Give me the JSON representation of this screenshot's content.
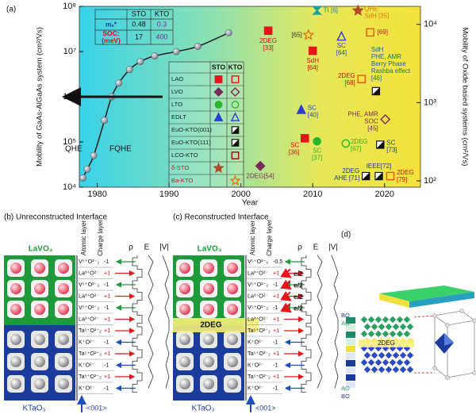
{
  "chart_data": {
    "type": "scatter",
    "panel_label": "(a)",
    "xlabel": "Year",
    "ylabel": "Mobility of GaAs-AlGaAs system (cm²/Vs)",
    "y2label": "Mobility of Oxide based systems (cm²/Vs)",
    "xlim": [
      1977.5,
      2025
    ],
    "xticks": [
      1980,
      1990,
      2000,
      2010,
      2020
    ],
    "ylim": [
      10000,
      100000000
    ],
    "ylog": true,
    "yticks": [
      {
        "value": 10000,
        "label": "10⁴"
      },
      {
        "value": 100000,
        "label": "10⁵"
      },
      {
        "value": 1000000,
        "label": "10⁶"
      },
      {
        "value": 10000000,
        "label": "10⁷"
      },
      {
        "value": 100000000,
        "label": "10⁸"
      }
    ],
    "y2lim": [
      83,
      17000
    ],
    "y2log": true,
    "y2ticks": [
      {
        "value": 100,
        "label": "10²"
      },
      {
        "value": 1000,
        "label": "10³"
      },
      {
        "value": 10000,
        "label": "10⁴"
      }
    ],
    "series": [
      {
        "color": "#8e9aa8",
        "marker": "sphere",
        "x": [
          1978,
          1978.6,
          1979.5,
          1981,
          1982,
          1983,
          1984.5,
          1986,
          1988,
          1991,
          1994,
          1998.3
        ],
        "values": [
          16000,
          25000,
          50000,
          300000,
          1000000,
          2000000,
          4000000,
          6000000,
          8000000,
          10000000,
          13000000,
          26000000
        ]
      },
      {
        "axis": "y2",
        "x": [
          2003.8,
          2009.4,
          2010,
          2010.6,
          2016.3,
          2014,
          2018,
          2016.8,
          2018.8,
          2008.4,
          2020.1,
          2008.9,
          2010.6,
          2014.6,
          2019.4,
          2002.7,
          2019.2,
          2017.4,
          2020.8
        ],
        "values": [
          8300,
          7300,
          4600,
          15000,
          15000,
          7000,
          7900,
          2000,
          1400,
          810,
          610,
          350,
          320,
          300,
          290,
          155,
          115,
          115,
          115
        ],
        "markers": [
          "square",
          "star",
          "square",
          "hourglass",
          "star",
          "triangle",
          "square",
          "square",
          "halfsquare",
          "triangle",
          "diamond",
          "square",
          "circle",
          "circle",
          "halfsquare",
          "diamond",
          "halfsquare",
          "halfsquare",
          "square"
        ],
        "colors": [
          "#e8141c",
          "#e07b10",
          "#e8141c",
          "#1a9e9e",
          "#b5482a",
          "#2a3fd0",
          "#e05a10",
          "#e05a10",
          "#111111",
          "#2a3fd0",
          "#7a2a5a",
          "#e8141c",
          "#2bb52b",
          "#2bb52b",
          "#111111",
          "#7a2a5a",
          "#111111",
          "#111111",
          "#e05a10"
        ],
        "filled": [
          true,
          false,
          true,
          true,
          true,
          false,
          false,
          false,
          true,
          true,
          false,
          true,
          true,
          false,
          true,
          true,
          true,
          true,
          false
        ],
        "labels": [
          [
            "2DEG",
            "[33]"
          ],
          [
            "[65]"
          ],
          [
            "SdH",
            "[64]"
          ],
          [
            "TI [6]"
          ],
          [
            "QHE",
            "SdH [35]"
          ],
          [
            "SC",
            "[64]"
          ],
          [
            "[69]"
          ],
          [
            "2DEG",
            "[68]"
          ],
          [
            "SdH",
            "PHE, AMR",
            "Berry Phase",
            "Rashba effect",
            "[46]"
          ],
          [
            "SC",
            "[40]"
          ],
          [
            "PHE, AMR",
            "SOC",
            "[45]"
          ],
          [
            "SC",
            "[36]"
          ],
          [
            "SC",
            "[37]"
          ],
          [
            "2DEG",
            "[67]"
          ],
          [
            "SC",
            "[73]"
          ],
          [
            "2DEG[54]"
          ],
          [
            "IEEE[72]"
          ],
          [
            "2DEG",
            "AHE [71]"
          ],
          [
            "2DEG",
            "[79]"
          ]
        ],
        "label_colors": [
          "#d0101a",
          "#333333",
          "#d0101a",
          "#1a7e9e",
          "#e07b10",
          "#2a3fd0",
          "#d0101a",
          "#d0101a",
          "#1b6a8a",
          "#2a3fd0",
          "#7a2a5a",
          "#d0101a",
          "#2bb52b",
          "#2bb52b",
          "#1b3a9a",
          "#7a2a5a",
          "#1b3a9a",
          "#1b3a9a",
          "#d0101a"
        ]
      }
    ],
    "annotations": [
      "QHE",
      "FQHE"
    ],
    "inset_table": {
      "header": [
        "STO",
        "KTO"
      ],
      "rows": [
        {
          "label": [
            "mₑ*"
          ],
          "sto": 0.48,
          "kto": 0.3
        },
        {
          "label": [
            "SOC:",
            "(meV)"
          ],
          "sto": 17,
          "kto": 400
        }
      ]
    },
    "legend": {
      "header": [
        "STO",
        "KTO"
      ],
      "rows": [
        {
          "name": "LAO",
          "marker": "square",
          "color": "#e8141c",
          "sto": true,
          "kto": true,
          "text_color": "#222222"
        },
        {
          "name": "LVO",
          "marker": "diamond",
          "color": "#7a2a5a",
          "sto": true,
          "kto": true,
          "text_color": "#222222"
        },
        {
          "name": "LTO",
          "marker": "circle",
          "color": "#2bb52b",
          "sto": true,
          "kto": true,
          "text_color": "#222222"
        },
        {
          "name": "EDLT",
          "marker": "triangle",
          "color": "#2a3fd0",
          "sto": true,
          "kto": true,
          "text_color": "#222222"
        },
        {
          "name": "EuO-KTO(001)",
          "marker": "halfsquare",
          "color": "#111111",
          "sto": false,
          "kto": true,
          "text_color": "#222222"
        },
        {
          "name": "EuO-KTO(111)",
          "marker": "halfsquare",
          "color": "#111111",
          "sto": false,
          "kto": true,
          "text_color": "#222222"
        },
        {
          "name": "LCO-KTO",
          "marker": "square",
          "color": "#8a1010",
          "sto": false,
          "kto": true,
          "text_color": "#222222"
        },
        {
          "name": "δ-STO",
          "marker": "star",
          "color": "#b5482a",
          "sto": true,
          "kto": false,
          "text_color": "#d0101a"
        },
        {
          "name": "Ba-KTO",
          "marker": "star",
          "color": "#e07b10",
          "sto": false,
          "kto": true,
          "text_color": "#d0101a"
        }
      ]
    }
  },
  "panels": [
    {
      "label": "(b) Unreconstructed Interface",
      "top_material": "LaVO₃",
      "bottom_material": "KTaO₃",
      "direction": "<001>",
      "headers": [
        "Atomic layer",
        "Charge layer",
        "ρ",
        "E",
        "|V|"
      ],
      "layers": [
        {
          "atoms": "V⁵⁺O²⁻₂",
          "charge": "-1"
        },
        {
          "atoms": "La³⁺O²⁻",
          "charge": "+1"
        },
        {
          "atoms": "V⁵⁺O²⁻₂",
          "charge": "-1"
        },
        {
          "atoms": "La³⁺O²⁻",
          "charge": "+1"
        },
        {
          "atoms": "V⁵⁺O²⁻₂",
          "charge": "-1"
        },
        {
          "atoms": "La³⁺O²⁻",
          "charge": "+1"
        },
        {
          "atoms": "Ta⁵⁺O²⁻₂",
          "charge": "+1"
        },
        {
          "atoms": "K⁺O²⁻",
          "charge": "-1"
        },
        {
          "atoms": "Ta⁵⁺O²⁻₂",
          "charge": "+1"
        },
        {
          "atoms": "K⁺O²⁻",
          "charge": "-1"
        },
        {
          "atoms": "Ta⁵⁺O²⁻₂",
          "charge": "+1"
        },
        {
          "atoms": "K⁺O²⁻",
          "charge": "-1"
        }
      ]
    },
    {
      "label": "(c) Reconstructed Interface",
      "top_material": "LaVO₃",
      "bottom_material": "KTaO₃",
      "direction": "<001>",
      "headers": [
        "Atomic layer",
        "Charge layer",
        "ρ",
        "E",
        "|V|"
      ],
      "interface": "2DEG",
      "transfers": [
        "e/2",
        "e/2",
        "e/2",
        "e/2"
      ],
      "layers": [
        {
          "atoms": "V⁵⁺O²⁻₂",
          "charge": "-0.5"
        },
        {
          "atoms": "La³⁺O²⁻",
          "charge": "+1"
        },
        {
          "atoms": "V⁵⁺O²⁻₂",
          "charge": "-1"
        },
        {
          "atoms": "La³⁺O²⁻",
          "charge": "+1"
        },
        {
          "atoms": "V⁵⁺O²⁻₂",
          "charge": "-1"
        },
        {
          "atoms": "La³⁺O²⁻",
          "charge": "+1"
        },
        {
          "atoms": "Ta⁵⁺O²⁻₂",
          "charge": "+1"
        },
        {
          "atoms": "K⁺O²⁻",
          "charge": "-1"
        },
        {
          "atoms": "Ta⁵⁺O²⁻₂",
          "charge": "+1"
        },
        {
          "atoms": "K⁺O²⁻",
          "charge": "-1"
        },
        {
          "atoms": "Ta⁵⁺O²⁻₂",
          "charge": "+1"
        },
        {
          "atoms": "K⁺O²⁻",
          "charge": "-1"
        }
      ]
    },
    {
      "label": "(d)",
      "interface": "2DEG",
      "planes": [
        "BO",
        "AO",
        "AO",
        "BO"
      ]
    }
  ]
}
